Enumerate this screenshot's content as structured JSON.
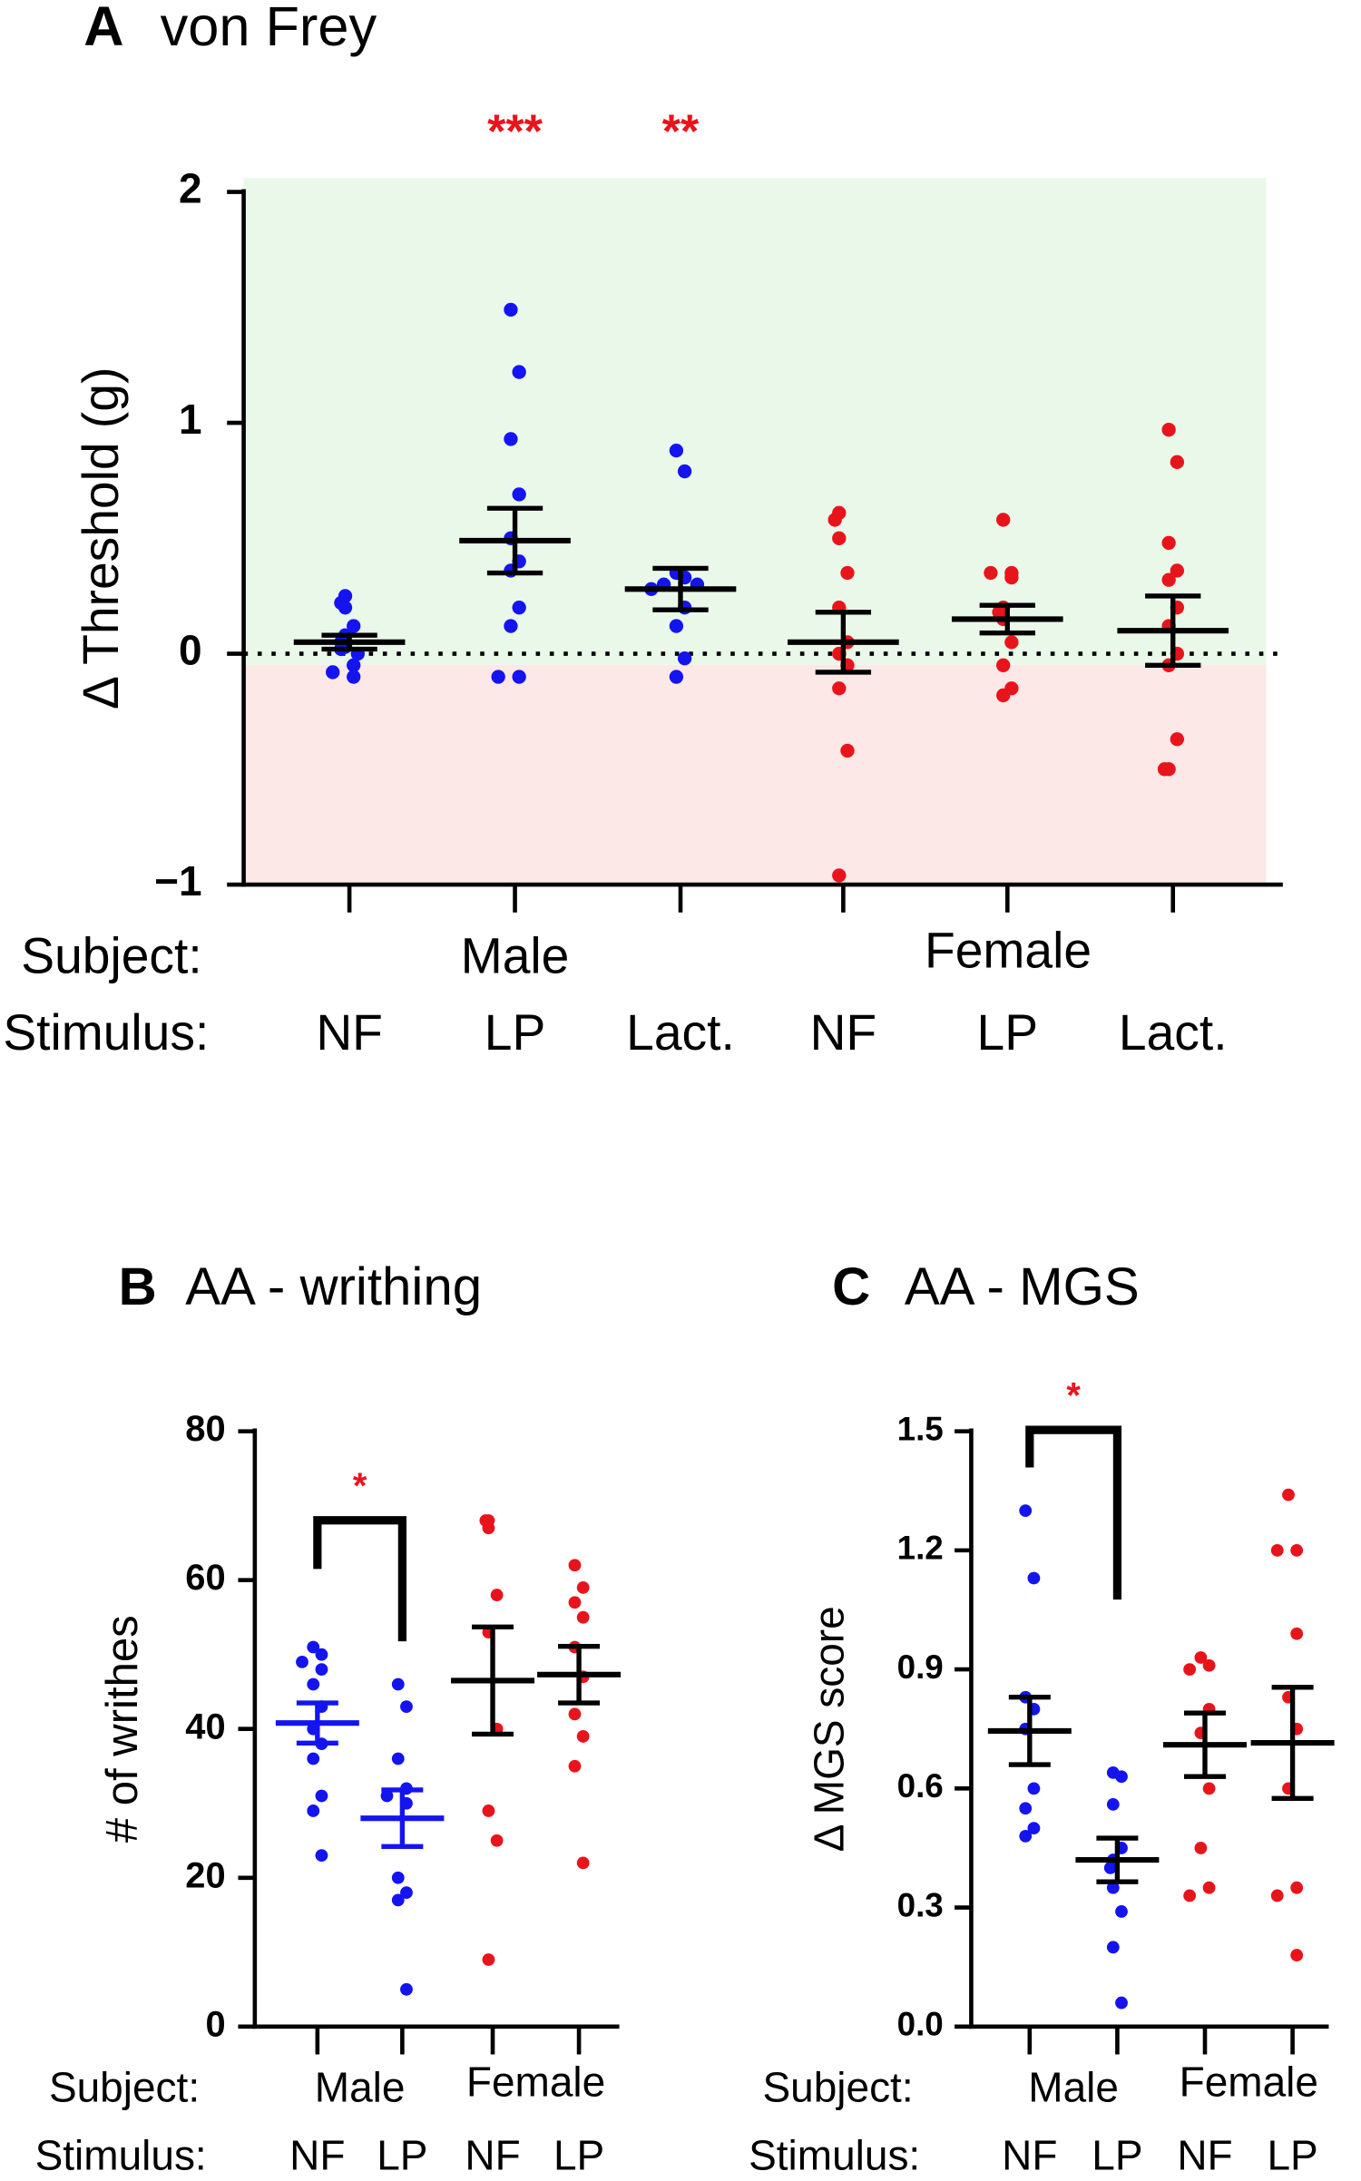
{
  "chart_data": [
    {
      "type": "strip",
      "panel": "A",
      "title": "von Frey",
      "ylabel": "Δ Threshold (g)",
      "ylim": [
        -1,
        2
      ],
      "yticks": [
        {
          "value": -1,
          "label": "−1"
        },
        0,
        1,
        2
      ],
      "refline": 0,
      "shading": true,
      "subject_label": "Subject:",
      "stimulus_label": "Stimulus:",
      "groups": [
        {
          "subject": "Male",
          "stimuli": [
            {
              "name": "NF",
              "color": "#1414f0",
              "bar_color": "#000000",
              "points": [
                0.25,
                0.22,
                0.2,
                0.12,
                0.08,
                0.05,
                0.03,
                0.02,
                0.0,
                -0.05,
                -0.08,
                -0.1
              ],
              "mean": 0.05,
              "sem": 0.03
            },
            {
              "name": "LP",
              "color": "#1414f0",
              "bar_color": "#000000",
              "points": [
                1.49,
                1.22,
                0.93,
                0.69,
                0.5,
                0.4,
                0.36,
                0.2,
                0.12,
                -0.1,
                -0.1
              ],
              "mean": 0.49,
              "sem": 0.14,
              "sig": "***"
            },
            {
              "name": "Lact.",
              "color": "#1414f0",
              "bar_color": "#000000",
              "points": [
                0.88,
                0.79,
                0.35,
                0.33,
                0.3,
                0.3,
                0.28,
                0.2,
                0.12,
                -0.02,
                -0.1
              ],
              "mean": 0.28,
              "sem": 0.09,
              "sig": "**"
            }
          ]
        },
        {
          "subject": "Female",
          "stimuli": [
            {
              "name": "NF",
              "color": "#e8141c",
              "bar_color": "#000000",
              "points": [
                0.61,
                0.58,
                0.5,
                0.35,
                0.2,
                0.05,
                0.0,
                -0.05,
                -0.15,
                -0.42,
                -0.96
              ],
              "mean": 0.05,
              "sem": 0.13
            },
            {
              "name": "LP",
              "color": "#e8141c",
              "bar_color": "#000000",
              "points": [
                0.58,
                0.35,
                0.35,
                0.33,
                0.2,
                0.18,
                0.15,
                0.05,
                -0.05,
                -0.15,
                -0.18
              ],
              "mean": 0.15,
              "sem": 0.06
            },
            {
              "name": "Lact.",
              "color": "#e8141c",
              "bar_color": "#000000",
              "points": [
                0.97,
                0.83,
                0.48,
                0.36,
                0.32,
                0.2,
                0.12,
                0.0,
                -0.05,
                -0.37,
                -0.5,
                -0.5
              ],
              "mean": 0.1,
              "sem": 0.15
            }
          ]
        }
      ]
    },
    {
      "type": "strip",
      "panel": "B",
      "title": "AA - writhing",
      "ylabel": "# of writhes",
      "ylim": [
        0,
        80
      ],
      "yticks": [
        0,
        20,
        40,
        60,
        80
      ],
      "comparison": {
        "label": "*"
      },
      "subject_label": "Subject:",
      "stimulus_label": "Stimulus:",
      "groups": [
        {
          "subject": "Male",
          "stimuli": [
            {
              "name": "NF",
              "color": "#1414f0",
              "bar_color": "#1414f0",
              "points": [
                51,
                50,
                49,
                48,
                46,
                43,
                40,
                38,
                36,
                31,
                29,
                23
              ],
              "mean": 40.8,
              "sem": 2.7
            },
            {
              "name": "LP",
              "color": "#1414f0",
              "bar_color": "#1414f0",
              "points": [
                46,
                43,
                36,
                32,
                31,
                30,
                20,
                18,
                17,
                5
              ],
              "mean": 28,
              "sem": 3.8
            }
          ]
        },
        {
          "subject": "Female",
          "stimuli": [
            {
              "name": "NF",
              "color": "#e8141c",
              "bar_color": "#000000",
              "points": [
                68,
                68,
                67,
                58,
                53,
                40,
                29,
                25,
                9
              ],
              "mean": 46.5,
              "sem": 7.2
            },
            {
              "name": "LP",
              "color": "#e8141c",
              "bar_color": "#000000",
              "points": [
                62,
                59,
                57,
                55,
                51,
                47,
                42,
                39,
                35,
                22
              ],
              "mean": 47.3,
              "sem": 3.8
            }
          ]
        }
      ]
    },
    {
      "type": "strip",
      "panel": "C",
      "title": "AA - MGS",
      "ylabel": "Δ MGS score",
      "ylim": [
        0,
        1.5
      ],
      "yticks": [
        {
          "value": 0,
          "label": "0.0"
        },
        0.3,
        0.6,
        0.9,
        1.2,
        1.5
      ],
      "comparison": {
        "label": "*"
      },
      "subject_label": "Subject:",
      "stimulus_label": "Stimulus:",
      "groups": [
        {
          "subject": "Male",
          "stimuli": [
            {
              "name": "NF",
              "color": "#1414f0",
              "bar_color": "#000000",
              "points": [
                1.3,
                1.13,
                0.83,
                0.8,
                0.75,
                0.6,
                0.55,
                0.5,
                0.48
              ],
              "mean": 0.745,
              "sem": 0.085
            },
            {
              "name": "LP",
              "color": "#1414f0",
              "bar_color": "#000000",
              "points": [
                0.64,
                0.63,
                0.56,
                0.45,
                0.42,
                0.4,
                0.35,
                0.29,
                0.2,
                0.06
              ],
              "mean": 0.42,
              "sem": 0.055
            }
          ]
        },
        {
          "subject": "Female",
          "stimuli": [
            {
              "name": "NF",
              "color": "#e8141c",
              "bar_color": "#000000",
              "points": [
                0.93,
                0.91,
                0.9,
                0.8,
                0.74,
                0.6,
                0.45,
                0.35,
                0.33
              ],
              "mean": 0.71,
              "sem": 0.08
            },
            {
              "name": "LP",
              "color": "#e8141c",
              "bar_color": "#000000",
              "points": [
                1.34,
                1.2,
                1.2,
                0.99,
                0.83,
                0.75,
                0.6,
                0.35,
                0.33,
                0.18
              ],
              "mean": 0.715,
              "sem": 0.14
            }
          ]
        }
      ]
    }
  ]
}
